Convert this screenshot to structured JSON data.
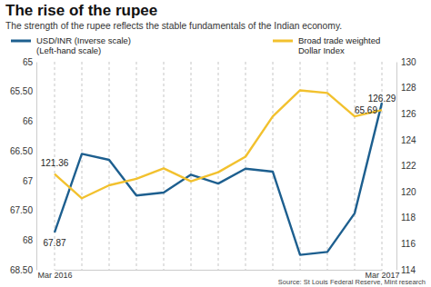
{
  "chart_data": {
    "type": "line",
    "title": "The rise of the rupee",
    "subtitle": "The strength of the rupee reflects the stable fundamentals of the Indian economy.",
    "source": "Source: St Louis Federal Reserve, Mint research",
    "categories": [
      "Mar 2016",
      null,
      null,
      null,
      null,
      null,
      null,
      null,
      null,
      null,
      null,
      null,
      "Mar 2017"
    ],
    "series": [
      {
        "name": "USD/INR (Inverse scale)\n(Left-hand scale)",
        "color": "#1d5f8f",
        "axis": "y",
        "values": [
          67.87,
          66.55,
          66.65,
          67.25,
          67.2,
          66.9,
          67.05,
          66.8,
          66.85,
          68.25,
          68.2,
          67.55,
          65.69
        ],
        "value_labels": [
          "67.87",
          null,
          null,
          null,
          null,
          null,
          null,
          null,
          null,
          null,
          null,
          null,
          "65.69"
        ]
      },
      {
        "name": "Broad trade weighted\nDollar Index",
        "color": "#f2c12e",
        "axis": "y2",
        "values": [
          121.36,
          119.5,
          120.5,
          121.0,
          121.8,
          120.8,
          121.5,
          122.7,
          125.8,
          127.8,
          127.6,
          125.8,
          126.29
        ],
        "value_labels": [
          "121.36",
          null,
          null,
          null,
          null,
          null,
          null,
          null,
          null,
          null,
          null,
          null,
          "126.29"
        ]
      }
    ],
    "ylim": [
      68.5,
      65
    ],
    "yticks": [
      65,
      {
        "value": 65.5,
        "label": "65.50"
      },
      66,
      {
        "value": 66.5,
        "label": "66.50"
      },
      67,
      {
        "value": 67.5,
        "label": "67.50"
      },
      68,
      {
        "value": 68.5,
        "label": "68.50"
      }
    ],
    "y2lim": [
      114,
      130
    ],
    "y2ticks": [
      114,
      116,
      118,
      120,
      122,
      124,
      126,
      128,
      130
    ],
    "grid": true,
    "data_labels": true,
    "legend": "top"
  }
}
